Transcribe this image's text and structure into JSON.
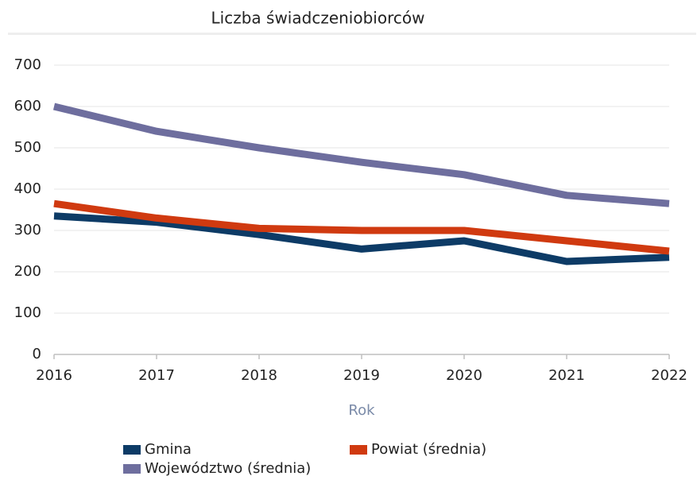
{
  "chart_data": {
    "type": "line",
    "title": "Liczba świadczeniobiorców",
    "x_label": "Rok",
    "x": [
      2016,
      2017,
      2018,
      2019,
      2020,
      2021,
      2022
    ],
    "series": [
      {
        "name": "Gmina",
        "color": "#0d3b66",
        "values": [
          335,
          320,
          290,
          255,
          275,
          225,
          235
        ]
      },
      {
        "name": "Powiat (średnia)",
        "color": "#d03a10",
        "values": [
          365,
          330,
          305,
          300,
          300,
          275,
          250
        ]
      },
      {
        "name": "Województwo (średnia)",
        "color": "#6e6e9e",
        "values": [
          600,
          540,
          500,
          465,
          435,
          385,
          365
        ]
      }
    ],
    "xlim": [
      2016,
      2022
    ],
    "xticks": [
      2016,
      2017,
      2018,
      2019,
      2020,
      2021,
      2022
    ],
    "ylim": [
      0,
      700
    ],
    "yticks": [
      0,
      100,
      200,
      300,
      400,
      500,
      600,
      700
    ],
    "grid": true,
    "legend": "bottom"
  }
}
